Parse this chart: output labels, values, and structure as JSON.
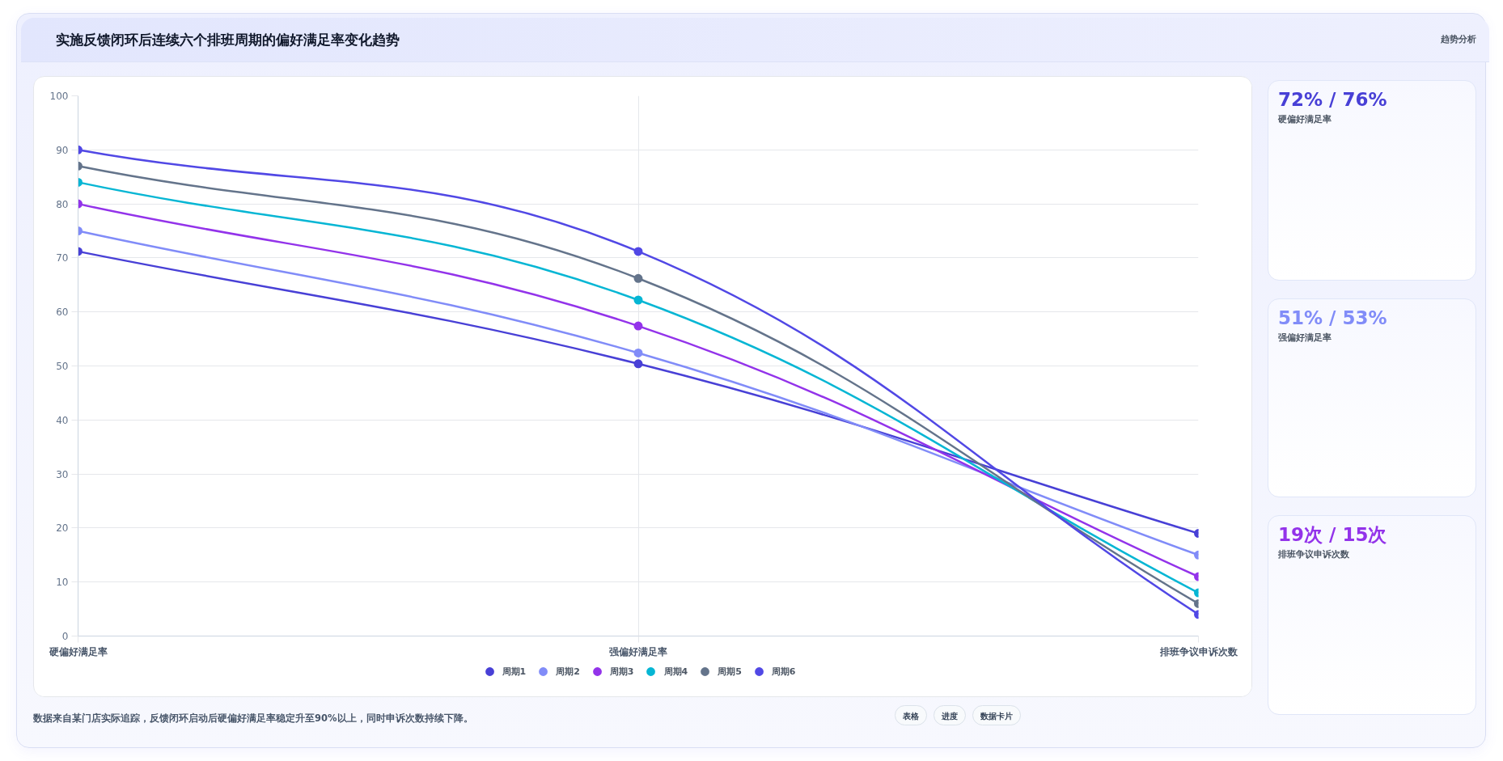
{
  "chart_data": {
    "type": "line",
    "title": "实施反馈闭环后连续六个排班周期的偏好满足率变化趋势",
    "categories": [
      "硬偏好满足率",
      "强偏好满足率",
      "排班争议申诉次数"
    ],
    "series": [
      {
        "name": "周期1",
        "color": "#4840d6",
        "values": [
          71.2,
          50.4,
          19
        ]
      },
      {
        "name": "周期2",
        "color": "#818cf8",
        "values": [
          75,
          52.4,
          15
        ]
      },
      {
        "name": "周期3",
        "color": "#9333ea",
        "values": [
          80,
          57.4,
          11
        ]
      },
      {
        "name": "周期4",
        "color": "#06b6d4",
        "values": [
          84,
          62.2,
          8
        ]
      },
      {
        "name": "周期5",
        "color": "#64748b",
        "values": [
          87,
          66.2,
          6
        ]
      },
      {
        "name": "周期6",
        "color": "#5148e5",
        "values": [
          90,
          71.2,
          4
        ]
      }
    ],
    "ylim": [
      0,
      100
    ],
    "yticks": [
      0,
      10,
      20,
      30,
      40,
      50,
      60,
      70,
      80,
      90,
      100
    ],
    "grid": true,
    "legend": "bottom",
    "marker": "circle",
    "annotations": [
      "趋势分析",
      "72% / 76%",
      "硬偏好满足率",
      "51% / 53%",
      "强偏好满足率",
      "19次 / 15次",
      "排班争议申诉次数",
      "数据来自某门店实际追踪，反馈闭环启动后硬偏好满足率稳定升至90%以上，同时申诉次数持续下降。",
      "表格",
      "进度",
      "数据卡片"
    ]
  }
}
